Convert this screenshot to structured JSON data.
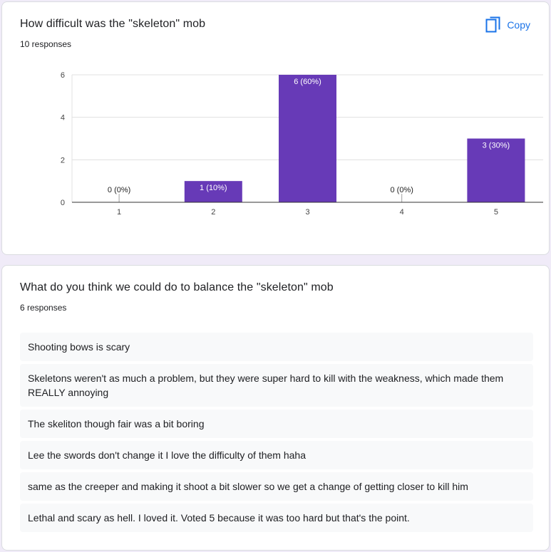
{
  "question1": {
    "title": "How difficult was the \"skeleton\" mob",
    "responses": "10 responses",
    "copy_label": "Copy"
  },
  "chart_data": {
    "type": "bar",
    "categories": [
      "1",
      "2",
      "3",
      "4",
      "5"
    ],
    "values": [
      0,
      1,
      6,
      0,
      3
    ],
    "data_labels": [
      "0 (0%)",
      "1 (10%)",
      "6 (60%)",
      "0 (0%)",
      "3 (30%)"
    ],
    "y_ticks": [
      "0",
      "2",
      "4",
      "6"
    ],
    "ylim": [
      0,
      6
    ],
    "grid": true,
    "bar_color": "#673ab7"
  },
  "question2": {
    "title": "What do you think we could do to balance the \"skeleton\" mob",
    "responses": "6 responses",
    "items": [
      "Shooting bows is scary",
      "Skeletons weren't as much a problem, but they were super hard to kill with the weakness, which made them REALLY annoying",
      "The skeliton though fair was a bit boring",
      "Lee the swords don't change it I love the difficulty of them haha",
      "same as the creeper and making it shoot a bit slower so we get a change of getting closer to kill him",
      "Lethal and scary as hell. I loved it. Voted 5 because it was too hard but that's the point."
    ]
  },
  "colors": {
    "accent": "#1a73e8",
    "bar": "#673ab7",
    "page_bg": "#f0ebf8"
  }
}
